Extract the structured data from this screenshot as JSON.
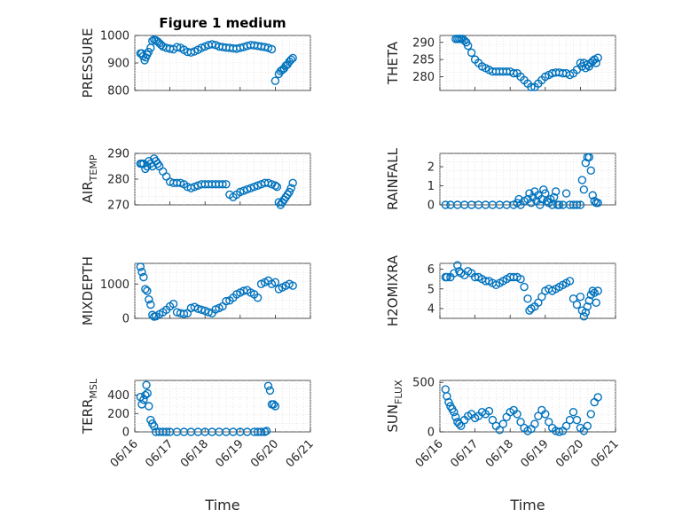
{
  "chart_data": {
    "type": "scatter",
    "title": "Figure 1 medium",
    "marker_color": "#0072bd",
    "grid": true,
    "x_ticks": [
      "06/16",
      "06/17",
      "06/18",
      "06/19",
      "06/20",
      "06/21"
    ],
    "xlim": [
      0,
      5
    ],
    "xlabel": "Time",
    "panels": [
      {
        "ylabel": "PRESSURE",
        "ylim": [
          800,
          1000
        ],
        "yticks": [
          "800",
          "900",
          "1000"
        ],
        "x": [
          0.16,
          0.2,
          0.24,
          0.28,
          0.31,
          0.35,
          0.39,
          0.45,
          0.5,
          0.55,
          0.6,
          0.65,
          0.7,
          0.75,
          0.8,
          0.9,
          1.0,
          1.1,
          1.2,
          1.3,
          1.4,
          1.5,
          1.6,
          1.7,
          1.8,
          1.9,
          2.0,
          2.1,
          2.2,
          2.3,
          2.4,
          2.5,
          2.6,
          2.7,
          2.8,
          2.9,
          3.0,
          3.1,
          3.2,
          3.3,
          3.4,
          3.5,
          3.6,
          3.7,
          3.8,
          3.9,
          4.0,
          4.1,
          4.15,
          4.2,
          4.25,
          4.3,
          4.35,
          4.4,
          4.45,
          4.5
        ],
        "y": [
          935,
          935,
          925,
          910,
          920,
          930,
          940,
          955,
          980,
          985,
          982,
          978,
          972,
          966,
          960,
          955,
          952,
          950,
          958,
          955,
          948,
          940,
          938,
          942,
          948,
          955,
          960,
          965,
          968,
          965,
          960,
          958,
          956,
          955,
          953,
          952,
          955,
          958,
          962,
          965,
          964,
          962,
          960,
          958,
          955,
          950,
          835,
          860,
          870,
          875,
          880,
          890,
          895,
          905,
          912,
          918
        ]
      },
      {
        "ylabel": "THETA",
        "ylim": [
          276,
          292
        ],
        "yticks": [
          "280",
          "285",
          "290"
        ],
        "x": [
          0.45,
          0.5,
          0.55,
          0.6,
          0.65,
          0.7,
          0.75,
          0.8,
          0.9,
          1.0,
          1.1,
          1.2,
          1.3,
          1.4,
          1.5,
          1.6,
          1.7,
          1.8,
          1.9,
          2.0,
          2.1,
          2.2,
          2.3,
          2.4,
          2.5,
          2.6,
          2.7,
          2.8,
          2.9,
          3.0,
          3.1,
          3.2,
          3.3,
          3.4,
          3.5,
          3.6,
          3.7,
          3.8,
          3.9,
          4.0,
          4.05,
          4.1,
          4.15,
          4.2,
          4.25,
          4.3,
          4.35,
          4.4,
          4.45,
          4.5
        ],
        "y": [
          291,
          291,
          291,
          291,
          291,
          290.5,
          290,
          289,
          287,
          285,
          284,
          283,
          282.5,
          282,
          281.5,
          281.5,
          281.5,
          281.5,
          281.5,
          281.5,
          281,
          281,
          280,
          279,
          278,
          277,
          277,
          278,
          279,
          280,
          280.5,
          281,
          281.2,
          281.2,
          281,
          281,
          280.5,
          281,
          282,
          284,
          283,
          284,
          282.5,
          283.5,
          283,
          284,
          284.5,
          285,
          284,
          285.5
        ]
      },
      {
        "ylabel": "AIR_TEMP",
        "ylim": [
          270,
          290
        ],
        "yticks": [
          "270",
          "280",
          "290"
        ],
        "x": [
          0.16,
          0.2,
          0.25,
          0.3,
          0.35,
          0.4,
          0.45,
          0.5,
          0.55,
          0.6,
          0.65,
          0.7,
          0.8,
          0.9,
          1.0,
          1.1,
          1.2,
          1.3,
          1.4,
          1.5,
          1.6,
          1.7,
          1.8,
          1.9,
          2.0,
          2.1,
          2.2,
          2.3,
          2.4,
          2.5,
          2.6,
          2.7,
          2.8,
          2.9,
          3.0,
          3.1,
          3.2,
          3.3,
          3.4,
          3.5,
          3.6,
          3.7,
          3.8,
          3.9,
          4.0,
          4.05,
          4.1,
          4.15,
          4.2,
          4.25,
          4.3,
          4.35,
          4.4,
          4.45,
          4.5
        ],
        "y": [
          286,
          286,
          286,
          284,
          285,
          287,
          286,
          285,
          288,
          287,
          286,
          285,
          283,
          281,
          279,
          278.5,
          278.5,
          278.5,
          278,
          277,
          276.5,
          277,
          277.5,
          278,
          278,
          278,
          278,
          278,
          278,
          278,
          278,
          274,
          273,
          274,
          275,
          275.5,
          276,
          276.5,
          277,
          277.5,
          278,
          278.5,
          278.5,
          278,
          277.5,
          277,
          271,
          270,
          271,
          272,
          273,
          274,
          275,
          276.5,
          278.5
        ]
      },
      {
        "ylabel": "RAINFALL",
        "ylim": [
          0,
          2.7
        ],
        "yticks": [
          "0",
          "1",
          "2"
        ],
        "x": [
          0.16,
          0.3,
          0.5,
          0.7,
          0.9,
          1.1,
          1.3,
          1.5,
          1.7,
          1.9,
          2.1,
          2.2,
          2.25,
          2.3,
          2.4,
          2.5,
          2.55,
          2.6,
          2.65,
          2.7,
          2.75,
          2.8,
          2.85,
          2.9,
          2.95,
          3.0,
          3.05,
          3.1,
          3.15,
          3.2,
          3.25,
          3.3,
          3.35,
          3.4,
          3.5,
          3.6,
          3.7,
          3.8,
          3.9,
          4.0,
          4.05,
          4.1,
          4.15,
          4.2,
          4.25,
          4.3,
          4.35,
          4.4,
          4.45,
          4.5
        ],
        "y": [
          0,
          0,
          0,
          0,
          0,
          0,
          0,
          0,
          0,
          0,
          0,
          0.1,
          0.3,
          0,
          0.2,
          0.3,
          0.6,
          0.1,
          0.4,
          0.7,
          0.2,
          0.5,
          0,
          0.3,
          0.8,
          0.6,
          0.2,
          0.1,
          0.3,
          0,
          0.4,
          0.7,
          0,
          0,
          0,
          0.6,
          0,
          0,
          0,
          0,
          1.3,
          0.8,
          2.2,
          2.5,
          2.5,
          1.8,
          0.5,
          0.2,
          0.1,
          0.1
        ]
      },
      {
        "ylabel": "MIXDEPTH",
        "ylim": [
          0,
          1600
        ],
        "yticks": [
          "0",
          "1000"
        ],
        "x": [
          0.16,
          0.2,
          0.25,
          0.3,
          0.35,
          0.4,
          0.45,
          0.5,
          0.55,
          0.6,
          0.7,
          0.8,
          0.9,
          1.0,
          1.1,
          1.2,
          1.3,
          1.4,
          1.5,
          1.6,
          1.7,
          1.8,
          1.9,
          2.0,
          2.1,
          2.2,
          2.3,
          2.4,
          2.5,
          2.6,
          2.7,
          2.8,
          2.9,
          3.0,
          3.1,
          3.2,
          3.3,
          3.4,
          3.5,
          3.6,
          3.7,
          3.8,
          3.9,
          4.0,
          4.1,
          4.2,
          4.3,
          4.4,
          4.5
        ],
        "y": [
          1500,
          1350,
          1200,
          850,
          800,
          550,
          400,
          100,
          50,
          60,
          120,
          180,
          250,
          350,
          420,
          180,
          150,
          130,
          150,
          300,
          330,
          280,
          250,
          220,
          180,
          150,
          260,
          300,
          350,
          500,
          520,
          600,
          700,
          750,
          800,
          820,
          750,
          700,
          600,
          1000,
          1050,
          1100,
          1000,
          1050,
          850,
          900,
          950,
          1000,
          950
        ]
      },
      {
        "ylabel": "H2OMIXRA",
        "ylim": [
          3.5,
          6.3
        ],
        "yticks": [
          "4",
          "5",
          "6"
        ],
        "x": [
          0.16,
          0.2,
          0.3,
          0.4,
          0.5,
          0.55,
          0.6,
          0.7,
          0.8,
          0.9,
          1.0,
          1.1,
          1.2,
          1.3,
          1.4,
          1.5,
          1.6,
          1.7,
          1.8,
          1.9,
          2.0,
          2.1,
          2.2,
          2.3,
          2.4,
          2.5,
          2.55,
          2.6,
          2.7,
          2.8,
          2.9,
          3.0,
          3.1,
          3.2,
          3.3,
          3.4,
          3.5,
          3.6,
          3.7,
          3.8,
          3.9,
          4.0,
          4.05,
          4.1,
          4.15,
          4.2,
          4.25,
          4.3,
          4.35,
          4.4,
          4.45,
          4.5
        ],
        "y": [
          5.6,
          5.6,
          5.6,
          5.8,
          6.2,
          5.9,
          5.8,
          5.7,
          5.9,
          5.8,
          5.6,
          5.6,
          5.5,
          5.4,
          5.4,
          5.3,
          5.2,
          5.3,
          5.4,
          5.5,
          5.6,
          5.6,
          5.6,
          5.5,
          5.1,
          4.5,
          3.9,
          4.0,
          4.1,
          4.3,
          4.6,
          4.9,
          5.0,
          4.9,
          5.0,
          5.1,
          5.2,
          5.3,
          5.4,
          4.5,
          4.2,
          4.6,
          3.9,
          3.6,
          3.8,
          4.1,
          4.4,
          4.7,
          4.9,
          4.8,
          4.3,
          4.9
        ]
      },
      {
        "ylabel": "TERR_MSL",
        "ylim": [
          0,
          560
        ],
        "yticks": [
          "0",
          "200",
          "400"
        ],
        "x": [
          0.16,
          0.2,
          0.25,
          0.3,
          0.33,
          0.36,
          0.4,
          0.45,
          0.5,
          0.55,
          0.6,
          0.7,
          0.8,
          0.9,
          1.0,
          1.2,
          1.4,
          1.6,
          1.8,
          2.0,
          2.2,
          2.4,
          2.6,
          2.8,
          3.0,
          3.2,
          3.4,
          3.5,
          3.6,
          3.7,
          3.75,
          3.8,
          3.85,
          3.9,
          3.95,
          4.0
        ],
        "y": [
          380,
          300,
          350,
          400,
          510,
          420,
          280,
          130,
          90,
          60,
          0,
          0,
          0,
          0,
          0,
          0,
          0,
          0,
          0,
          0,
          0,
          0,
          0,
          0,
          0,
          0,
          0,
          0,
          0,
          0,
          10,
          500,
          450,
          300,
          300,
          280
        ]
      },
      {
        "ylabel": "SUN_FLUX",
        "ylim": [
          0,
          520
        ],
        "yticks": [
          "0",
          "500"
        ],
        "x": [
          0.16,
          0.2,
          0.25,
          0.3,
          0.35,
          0.4,
          0.45,
          0.5,
          0.55,
          0.6,
          0.7,
          0.8,
          0.9,
          1.0,
          1.1,
          1.2,
          1.3,
          1.4,
          1.5,
          1.6,
          1.7,
          1.8,
          1.9,
          2.0,
          2.1,
          2.2,
          2.3,
          2.4,
          2.5,
          2.6,
          2.7,
          2.8,
          2.9,
          3.0,
          3.1,
          3.2,
          3.3,
          3.4,
          3.5,
          3.6,
          3.7,
          3.8,
          3.9,
          4.0,
          4.1,
          4.2,
          4.3,
          4.4,
          4.5
        ],
        "y": [
          430,
          360,
          300,
          260,
          230,
          200,
          150,
          100,
          80,
          60,
          120,
          160,
          180,
          140,
          160,
          200,
          180,
          210,
          120,
          60,
          20,
          80,
          150,
          200,
          220,
          180,
          100,
          40,
          10,
          30,
          80,
          160,
          220,
          180,
          100,
          40,
          10,
          0,
          10,
          60,
          120,
          200,
          120,
          40,
          10,
          60,
          180,
          300,
          350
        ]
      }
    ]
  }
}
